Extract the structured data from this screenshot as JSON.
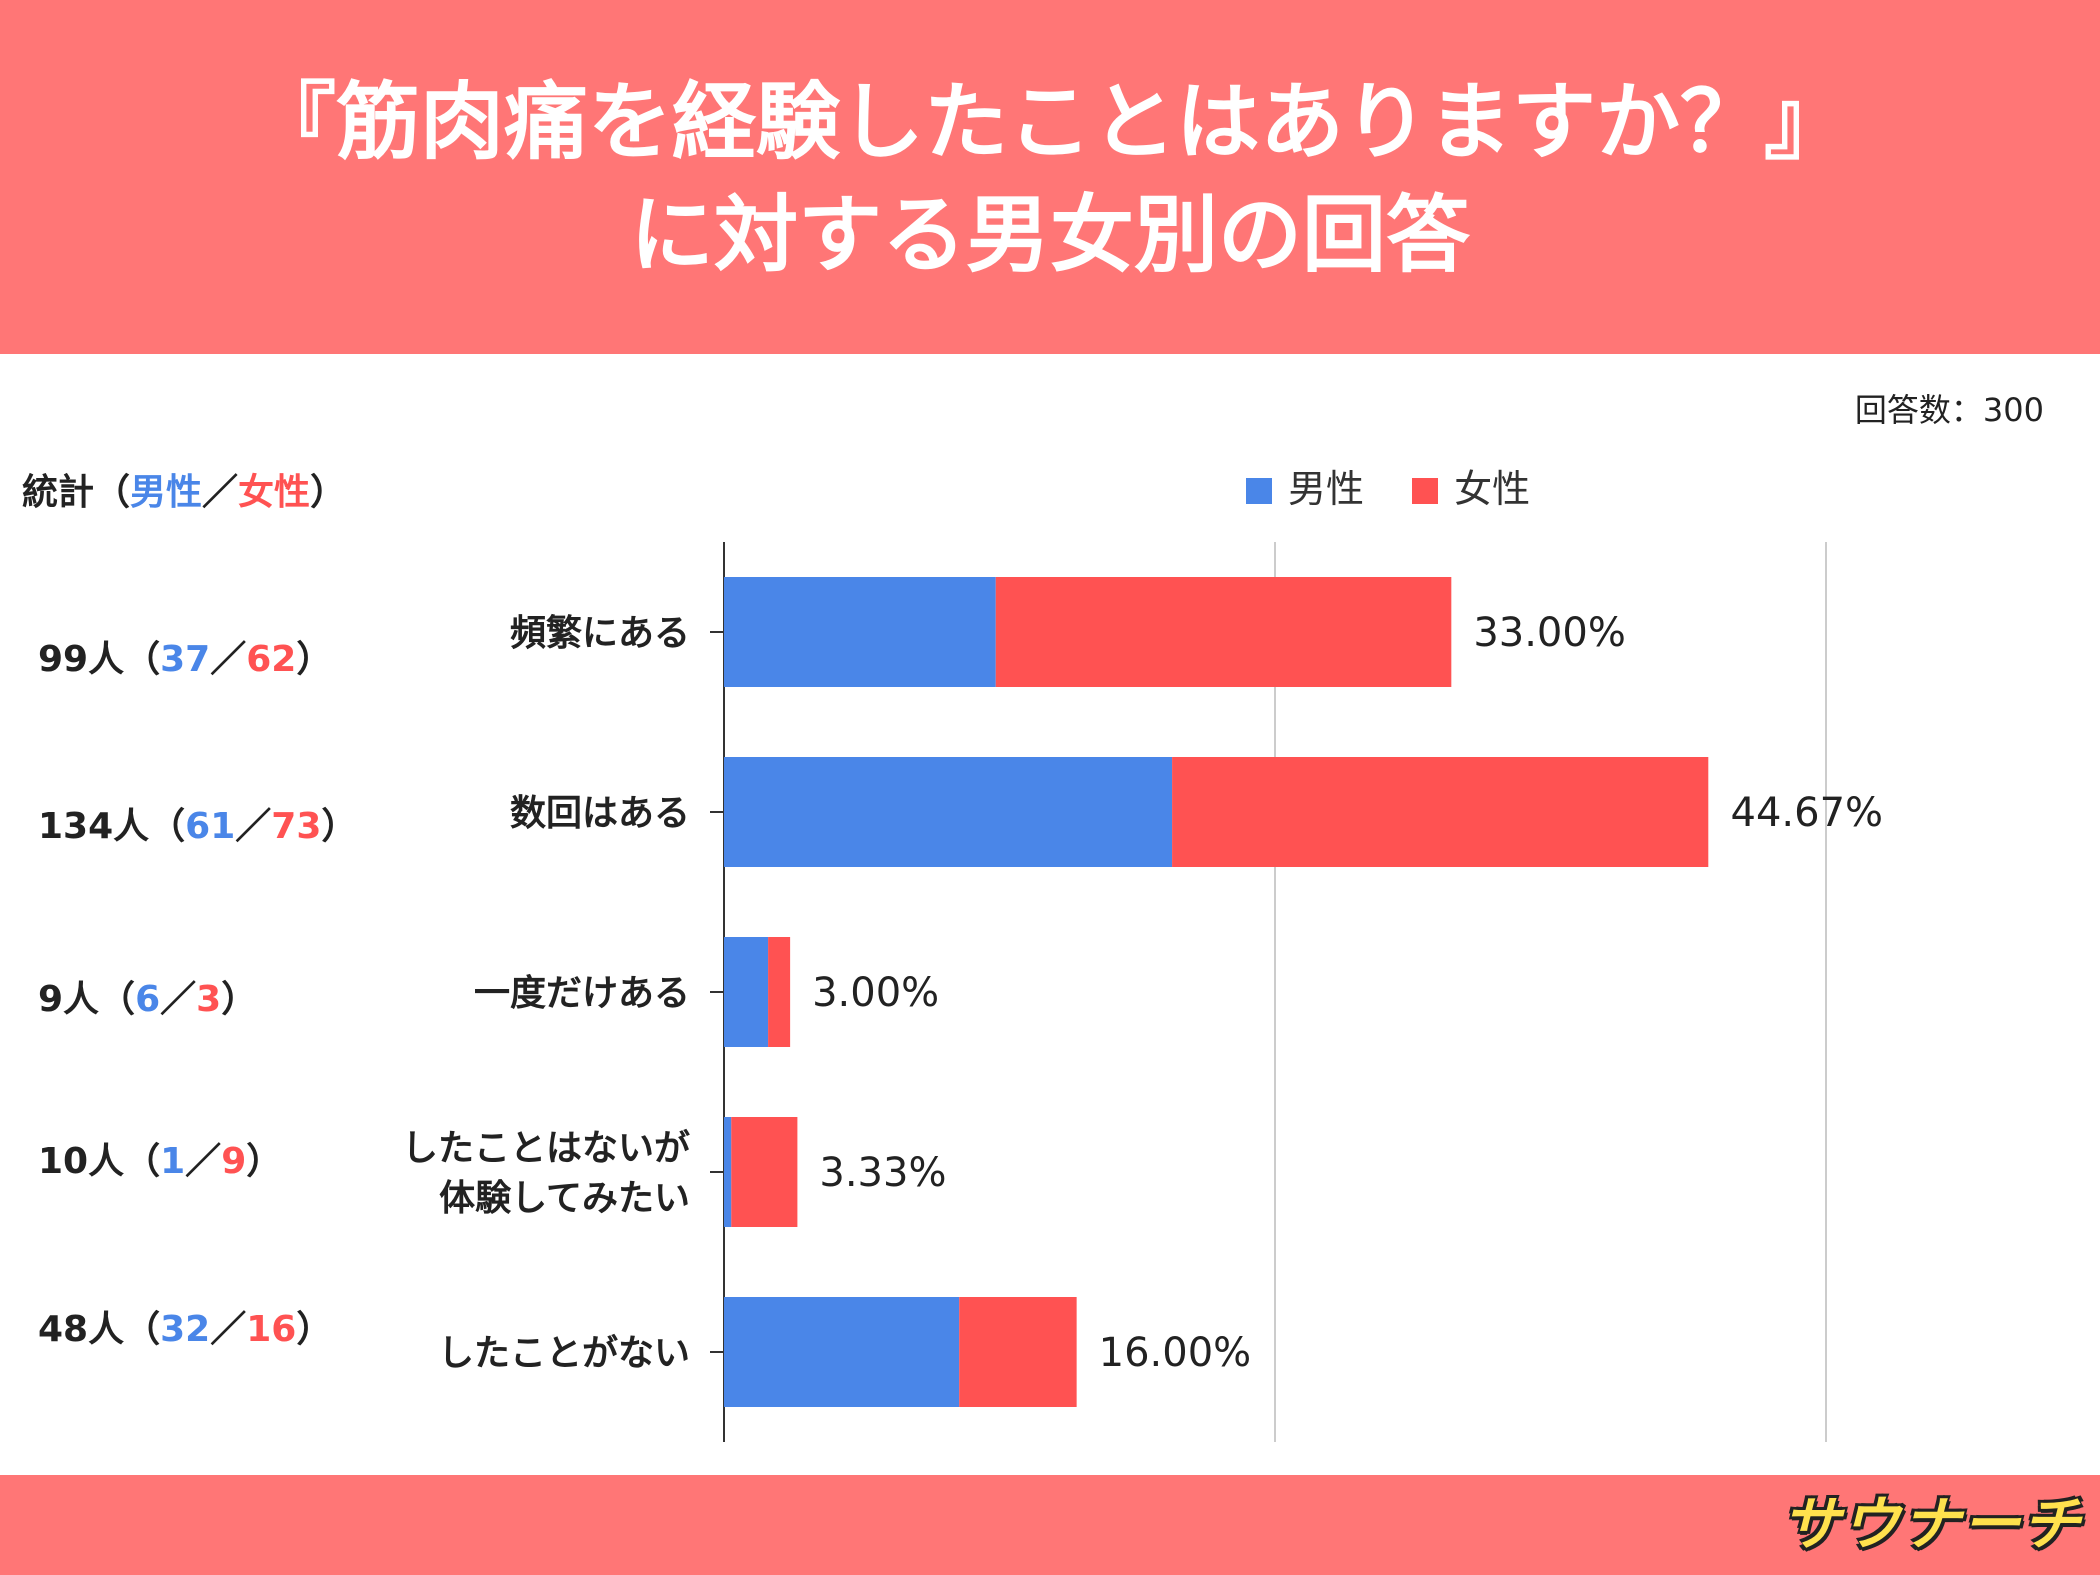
{
  "header": {
    "title_line1": "『筋肉痛を経験したことはありますか？』",
    "title_line2": "に対する男女別の回答"
  },
  "response_count": "回答数：300",
  "stats": {
    "title_prefix": "統計（",
    "male_label": "男性",
    "separator": "／",
    "female_label": "女性",
    "title_suffix": "）",
    "rows": [
      {
        "total": "99人（",
        "male": "37",
        "sep": "／",
        "female": "62",
        "close": "）"
      },
      {
        "total": "134人（",
        "male": "61",
        "sep": "／",
        "female": "73",
        "close": "）"
      },
      {
        "total": "9人（",
        "male": "6",
        "sep": "／",
        "female": "3",
        "close": "）"
      },
      {
        "total": "10人（",
        "male": "1",
        "sep": "／",
        "female": "9",
        "close": "）"
      },
      {
        "total": "48人（",
        "male": "32",
        "sep": "／",
        "female": "16",
        "close": "）"
      }
    ]
  },
  "colors": {
    "male": "#4a86e8",
    "female": "#ff5252",
    "header": "#ff7676"
  },
  "logo_text": "サウナーチ",
  "chart_data": {
    "type": "bar",
    "orientation": "horizontal",
    "stacked": true,
    "categories": [
      [
        "頻繁にある"
      ],
      [
        "数回はある"
      ],
      [
        "一度だけある"
      ],
      [
        "したことはないが",
        "体験してみたい"
      ],
      [
        "したことがない"
      ]
    ],
    "series": [
      {
        "name": "男性",
        "values": [
          12.33,
          20.33,
          2.0,
          0.33,
          10.67
        ]
      },
      {
        "name": "女性",
        "values": [
          20.67,
          24.33,
          1.0,
          3.0,
          5.33
        ]
      }
    ],
    "totals_labels": [
      "33.00%",
      "44.67%",
      "3.00%",
      "3.33%",
      "16.00%"
    ],
    "totals": [
      33.0,
      44.67,
      3.0,
      3.33,
      16.0
    ],
    "xlim": [
      0,
      50
    ],
    "gridlines": [
      25,
      50
    ],
    "grid": true,
    "legend": "top"
  }
}
